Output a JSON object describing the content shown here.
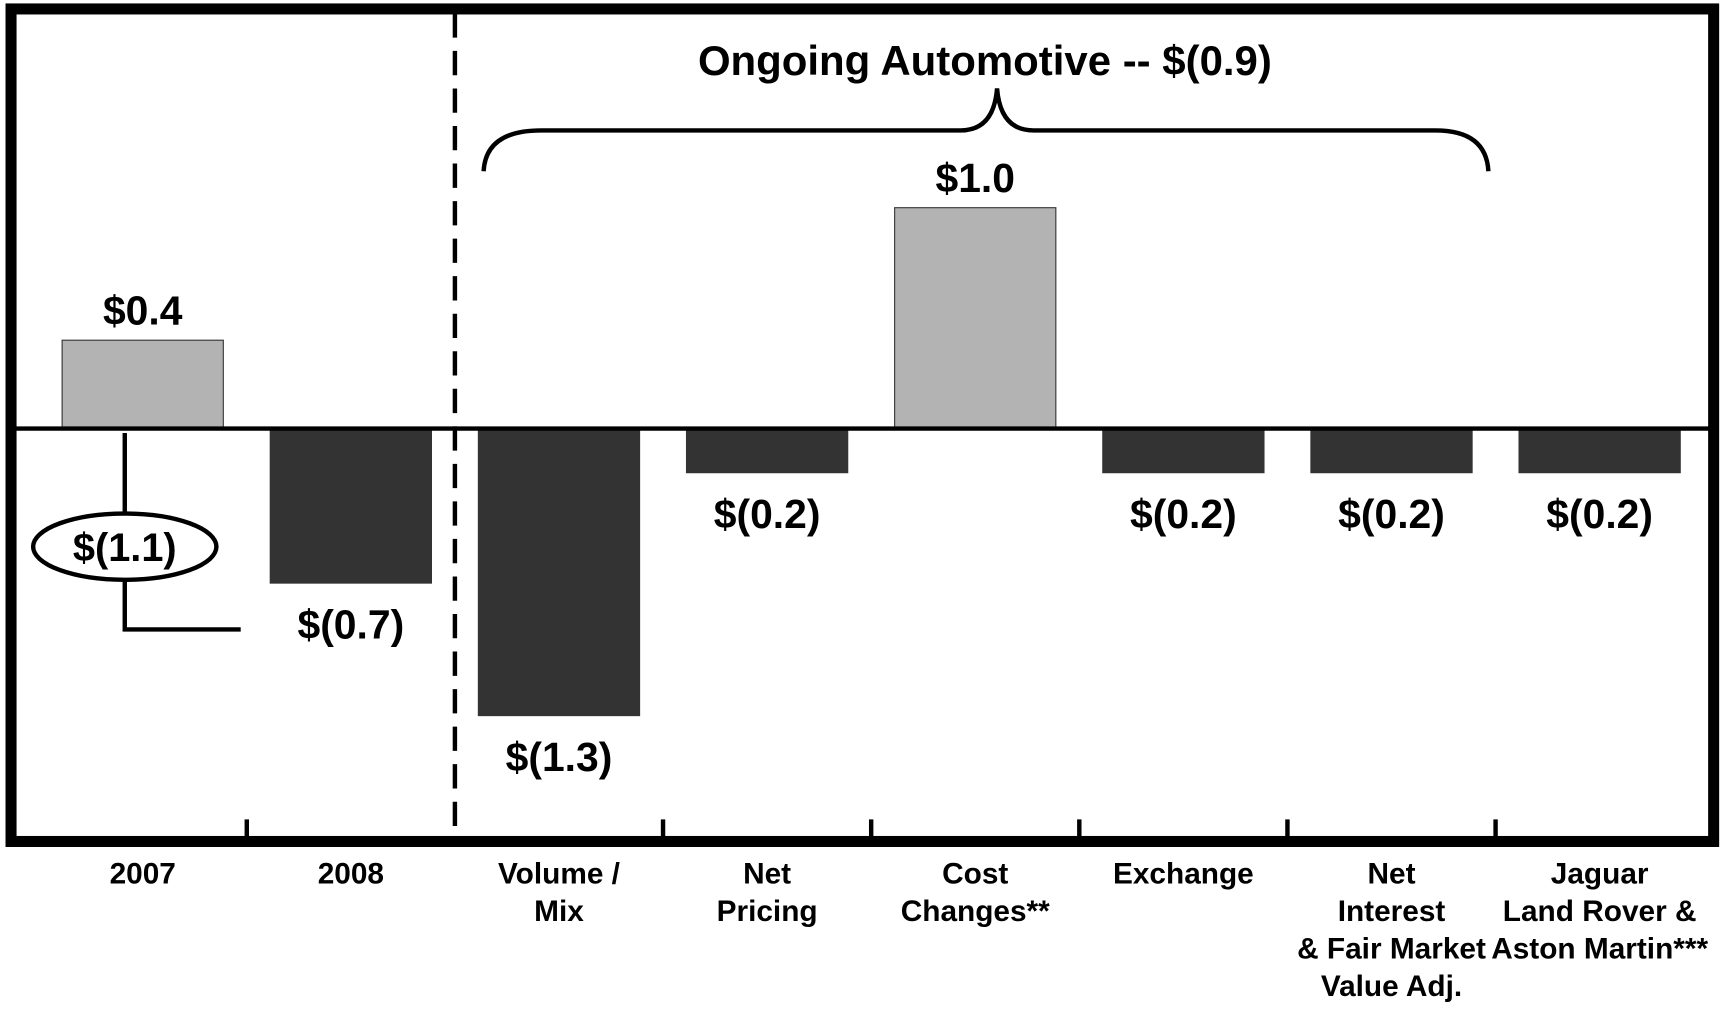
{
  "chart_data": {
    "type": "bar",
    "categories": [
      "2007",
      "2008",
      "Volume /\nMix",
      "Net\nPricing",
      "Cost\nChanges**",
      "Exchange",
      "Net\nInterest\n& Fair Market\nValue Adj.",
      "Jaguar\nLand Rover &\nAston Martin***"
    ],
    "values": [
      0.4,
      -0.7,
      -1.3,
      -0.2,
      1.0,
      -0.2,
      -0.2,
      -0.2
    ],
    "value_labels": [
      "$0.4",
      "$(0.7)",
      "$(1.3)",
      "$(0.2)",
      "$1.0",
      "$(0.2)",
      "$(0.2)",
      "$(0.2)"
    ],
    "colors": [
      "#b3b3b3",
      "#333333",
      "#333333",
      "#333333",
      "#b3b3b3",
      "#333333",
      "#333333",
      "#333333"
    ],
    "ylim": [
      -1.86,
      1.88
    ],
    "annotations": [
      "Ongoing Automotive -- $(0.9)",
      "$(1.1)"
    ]
  }
}
